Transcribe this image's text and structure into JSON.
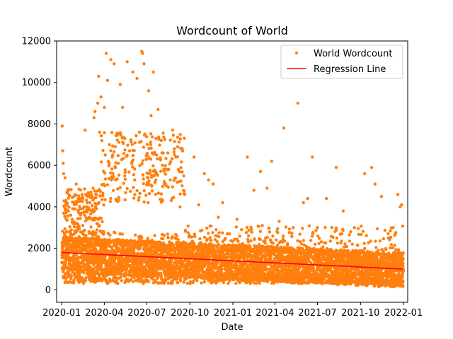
{
  "chart_data": {
    "type": "scatter",
    "title": "Wordcount of World",
    "xlabel": "Date",
    "ylabel": "Wordcount",
    "x_range": [
      "2019-12-21",
      "2022-01-10"
    ],
    "ylim": [
      -600,
      12000
    ],
    "x_ticks": [
      "2020-01",
      "2020-04",
      "2020-07",
      "2020-10",
      "2021-01",
      "2021-04",
      "2021-07",
      "2021-10",
      "2022-01"
    ],
    "y_ticks": [
      0,
      2000,
      4000,
      6000,
      8000,
      10000,
      12000
    ],
    "grid": false,
    "legend_position": "top-right",
    "colors": {
      "points": "#ff7f0e",
      "regression": "#ff0000"
    },
    "series": [
      {
        "name": "World Wordcount",
        "kind": "scatter",
        "data_range": [
          "2020-01-01",
          "2021-12-31"
        ],
        "note_points": [
          [
            "2020-01-02",
            7900
          ],
          [
            "2020-01-03",
            6700
          ],
          [
            "2020-01-04",
            6100
          ],
          [
            "2020-01-05",
            5600
          ],
          [
            "2020-01-08",
            5400
          ],
          [
            "2020-01-10",
            4300
          ],
          [
            "2020-01-15",
            3800
          ],
          [
            "2020-01-20",
            3600
          ],
          [
            "2020-01-25",
            3200
          ],
          [
            "2020-02-01",
            5100
          ],
          [
            "2020-02-05",
            4400
          ],
          [
            "2020-02-10",
            3900
          ],
          [
            "2020-02-15",
            3100
          ],
          [
            "2020-02-18",
            4000
          ],
          [
            "2020-02-20",
            7700
          ],
          [
            "2020-02-25",
            3400
          ],
          [
            "2020-03-01",
            4200
          ],
          [
            "2020-03-05",
            3800
          ],
          [
            "2020-03-08",
            4900
          ],
          [
            "2020-03-10",
            8300
          ],
          [
            "2020-03-12",
            8600
          ],
          [
            "2020-03-15",
            4600
          ],
          [
            "2020-03-18",
            9000
          ],
          [
            "2020-03-20",
            10300
          ],
          [
            "2020-03-22",
            7600
          ],
          [
            "2020-03-25",
            9300
          ],
          [
            "2020-04-01",
            8800
          ],
          [
            "2020-04-05",
            11400
          ],
          [
            "2020-04-08",
            10100
          ],
          [
            "2020-04-12",
            7000
          ],
          [
            "2020-04-15",
            11100
          ],
          [
            "2020-04-18",
            6400
          ],
          [
            "2020-04-22",
            10900
          ],
          [
            "2020-04-25",
            5300
          ],
          [
            "2020-05-01",
            6100
          ],
          [
            "2020-05-05",
            9900
          ],
          [
            "2020-05-10",
            8800
          ],
          [
            "2020-05-15",
            5500
          ],
          [
            "2020-05-20",
            11000
          ],
          [
            "2020-05-25",
            6700
          ],
          [
            "2020-06-01",
            10500
          ],
          [
            "2020-06-05",
            5300
          ],
          [
            "2020-06-10",
            10200
          ],
          [
            "2020-06-15",
            7600
          ],
          [
            "2020-06-20",
            11500
          ],
          [
            "2020-06-22",
            11400
          ],
          [
            "2020-06-25",
            10900
          ],
          [
            "2020-07-01",
            6300
          ],
          [
            "2020-07-05",
            9600
          ],
          [
            "2020-07-10",
            8400
          ],
          [
            "2020-07-15",
            10500
          ],
          [
            "2020-07-20",
            5600
          ],
          [
            "2020-07-25",
            8700
          ],
          [
            "2020-08-01",
            7200
          ],
          [
            "2020-08-05",
            6600
          ],
          [
            "2020-08-10",
            5100
          ],
          [
            "2020-08-15",
            6600
          ],
          [
            "2020-08-20",
            5300
          ],
          [
            "2020-08-25",
            7700
          ],
          [
            "2020-09-01",
            6400
          ],
          [
            "2020-09-05",
            6900
          ],
          [
            "2020-09-10",
            4000
          ],
          [
            "2020-09-20",
            4600
          ],
          [
            "2020-10-10",
            6400
          ],
          [
            "2020-10-20",
            4100
          ],
          [
            "2020-11-01",
            5600
          ],
          [
            "2020-11-10",
            5300
          ],
          [
            "2020-11-20",
            5100
          ],
          [
            "2020-12-01",
            3500
          ],
          [
            "2020-12-10",
            4200
          ],
          [
            "2020-12-20",
            2700
          ],
          [
            "2021-01-10",
            3400
          ],
          [
            "2021-02-01",
            6400
          ],
          [
            "2021-02-15",
            4800
          ],
          [
            "2021-03-01",
            5700
          ],
          [
            "2021-03-05",
            3100
          ],
          [
            "2021-03-15",
            4900
          ],
          [
            "2021-03-25",
            6200
          ],
          [
            "2021-04-10",
            3300
          ],
          [
            "2021-04-20",
            7800
          ],
          [
            "2021-05-10",
            3000
          ],
          [
            "2021-05-20",
            9000
          ],
          [
            "2021-06-01",
            4200
          ],
          [
            "2021-06-10",
            4400
          ],
          [
            "2021-06-20",
            6400
          ],
          [
            "2021-07-01",
            3000
          ],
          [
            "2021-07-20",
            4400
          ],
          [
            "2021-08-10",
            5900
          ],
          [
            "2021-08-25",
            3800
          ],
          [
            "2021-09-10",
            2800
          ],
          [
            "2021-10-10",
            5600
          ],
          [
            "2021-10-25",
            5900
          ],
          [
            "2021-11-01",
            5100
          ],
          [
            "2021-11-15",
            4500
          ],
          [
            "2021-12-10",
            3000
          ],
          [
            "2021-12-20",
            4600
          ],
          [
            "2021-12-25",
            4000
          ],
          [
            "2021-12-28",
            4100
          ]
        ]
      },
      {
        "name": "Regression Line",
        "kind": "line",
        "x": [
          "2020-01-01",
          "2021-12-31"
        ],
        "y": [
          1800,
          1000
        ]
      }
    ]
  }
}
